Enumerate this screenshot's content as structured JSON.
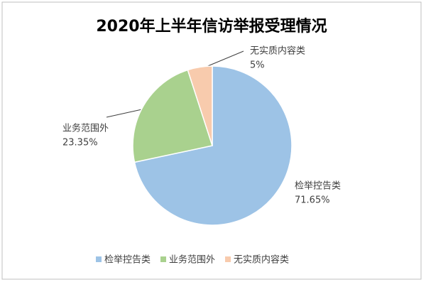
{
  "chart_data": {
    "type": "pie",
    "title": "2020年上半年信访举报受理情况",
    "categories": [
      "检举控告类",
      "业务范围外",
      "无实质内容类"
    ],
    "values": [
      71.65,
      23.35,
      5
    ],
    "value_labels": [
      "71.65%",
      "23.35%",
      "5%"
    ],
    "colors": [
      "#9dc3e6",
      "#a9d18e",
      "#f8cbad"
    ],
    "legend": "bottom"
  }
}
